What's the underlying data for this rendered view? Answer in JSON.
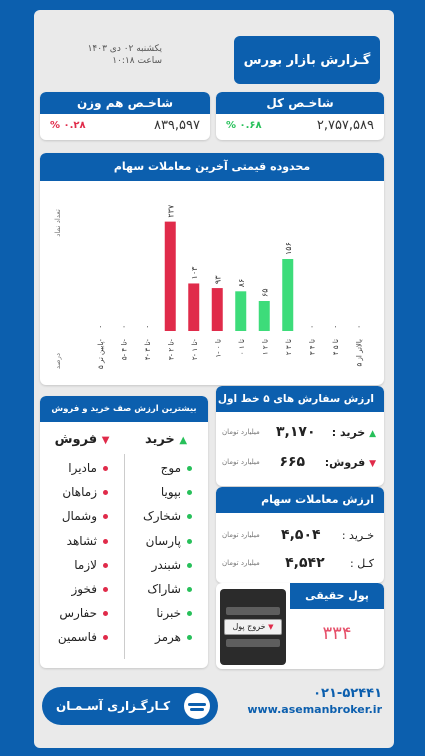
{
  "header": {
    "title": "گـزارش بازار بورس",
    "date": "یکشنبه ۰۲ دی ۱۴۰۳",
    "time": "ساعت ۱۰:۱۸"
  },
  "index_total": {
    "title": "شاخـص کل",
    "value": "۲,۷۵۷,۵۸۹",
    "change": "% ۰.۶۸"
  },
  "index_equal": {
    "title": "شاخـص هم وزن",
    "value": "۸۳۹,۵۹۷",
    "change": "% ۰.۲۸"
  },
  "chart": {
    "title": "محدوده قیمتی آخرین معاملات سهام",
    "ylabel": "تعداد نماد",
    "xlabel": "درصد"
  },
  "chart_data": {
    "type": "bar",
    "categories": [
      "پایین تر ۵-",
      "۵- تا ۴-",
      "۴- تا ۳-",
      "۳- تا ۲-",
      "۲- تا ۱-",
      "۱- تا ۰",
      "۰ تا ۱",
      "۱ تا ۲",
      "۲ تا ۳",
      "۳ تا ۴",
      "۴ تا ۵",
      "بالاتر از ۵"
    ],
    "values": [
      0,
      0,
      0,
      237,
      103,
      93,
      86,
      65,
      156,
      0,
      0,
      0
    ],
    "value_labels": [
      "۰",
      "۰",
      "۰",
      "۲۳۷",
      "۱۰۳",
      "۹۳",
      "۸۶",
      "۶۵",
      "۱۵۶",
      "۰",
      "۰",
      "۰"
    ],
    "colors": [
      "#e02b4a",
      "#e02b4a",
      "#e02b4a",
      "#e02b4a",
      "#e02b4a",
      "#e02b4a",
      "#3ddc7a",
      "#3ddc7a",
      "#3ddc7a",
      "#3ddc7a",
      "#3ddc7a",
      "#3ddc7a"
    ],
    "ylim": [
      0,
      260
    ],
    "ylabel": "تعداد نماد",
    "xlabel": "درصد",
    "grid": false
  },
  "queue": {
    "title": "بیشترین ارزش صف خرید و فروش",
    "buy_label": "خرید",
    "sell_label": "فروش",
    "buy": [
      "موج",
      "بپویا",
      "شخارک",
      "پارسان",
      "شبندر",
      "شاراک",
      "خبرنا",
      "هرمز"
    ],
    "sell": [
      "ماديرا",
      "زماهان",
      "وشمال",
      "ثشاهد",
      "لازما",
      "فخوز",
      "حفارس",
      "فاسمين"
    ]
  },
  "orders": {
    "title": "ارزش سفارش های ۵ خط اول",
    "buy_label": "خرید :",
    "buy_value": "۳,۱۷۰",
    "sell_label": "فروش:",
    "sell_value": "۶۶۵",
    "unit": "میلیارد تومان"
  },
  "trades": {
    "title": "ارزش معاملات سهام",
    "buy_label": "خـرید :",
    "buy_value": "۴,۵۰۴",
    "total_label": "کـل :",
    "total_value": "۴,۵۴۲",
    "unit": "میلیارد تومان"
  },
  "money": {
    "title": "پول حقیقی",
    "value": "۳۳۴",
    "status": "خروج پول"
  },
  "footer": {
    "brand": "کـارگـزاری آسـمـان",
    "phone": "۰۲۱-۵۲۴۴۱",
    "website": "www.asemanbroker.ir"
  }
}
